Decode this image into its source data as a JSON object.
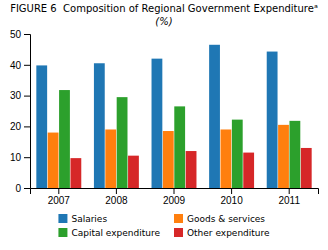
{
  "chart_data": {
    "type": "bar",
    "title": "FIGURE 6  Composition of Regional Government Expenditureᵃ",
    "subtitle": "(%)",
    "categories": [
      "2007",
      "2008",
      "2009",
      "2010",
      "2011"
    ],
    "series": [
      {
        "name": "Salaries",
        "values": [
          39.8,
          40.5,
          42.0,
          46.5,
          44.3
        ]
      },
      {
        "name": "Goods & services",
        "values": [
          18.0,
          19.0,
          18.5,
          19.0,
          20.5
        ]
      },
      {
        "name": "Capital expenditure",
        "values": [
          31.8,
          29.5,
          26.5,
          22.2,
          21.8
        ]
      },
      {
        "name": "Other expenditure",
        "values": [
          9.7,
          10.5,
          12.0,
          11.5,
          13.0
        ]
      }
    ],
    "ylim": [
      0,
      50
    ],
    "yticks": [
      0,
      10,
      20,
      30,
      40,
      50
    ],
    "grid": false,
    "legend": "bottom"
  }
}
